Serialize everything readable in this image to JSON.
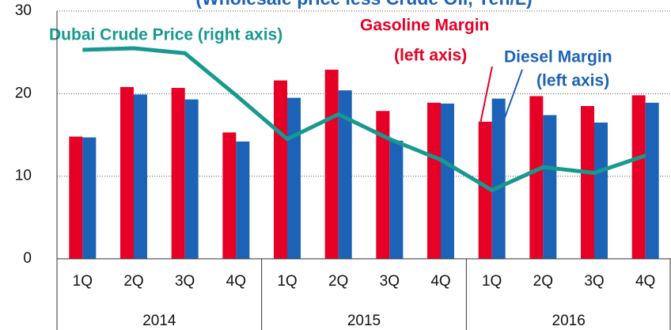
{
  "chart_data": {
    "type": "bar",
    "title": "(Wholesale price less Crude Oil, Yen/L)",
    "categories": [
      "1Q",
      "2Q",
      "3Q",
      "4Q",
      "1Q",
      "2Q",
      "3Q",
      "4Q",
      "1Q",
      "2Q",
      "3Q",
      "4Q"
    ],
    "groups": [
      "2014",
      "2015",
      "2016"
    ],
    "series": [
      {
        "name": "Gasoline Margin",
        "color": "#e60026",
        "type": "bar",
        "values": [
          14.8,
          20.8,
          20.7,
          15.3,
          21.6,
          22.9,
          17.9,
          18.9,
          16.6,
          19.7,
          18.5,
          19.8
        ]
      },
      {
        "name": "Diesel Margin",
        "color": "#1c63b7",
        "type": "bar",
        "values": [
          14.7,
          19.9,
          19.3,
          14.2,
          19.5,
          20.4,
          14.3,
          18.8,
          19.4,
          17.4,
          16.5,
          18.9
        ]
      },
      {
        "name": "Dubai Crude Price (right axis)",
        "color": "#17998f",
        "type": "line",
        "values": [
          25.3,
          25.5,
          24.9,
          19.8,
          14.5,
          17.5,
          14.5,
          12.0,
          8.3,
          11.1,
          10.4,
          12.5
        ]
      }
    ],
    "annotations": [
      "(left axis)",
      "(left axis)"
    ],
    "ylim": [
      0,
      30
    ],
    "yticks": [
      0,
      10,
      20,
      30
    ],
    "grid": true
  }
}
